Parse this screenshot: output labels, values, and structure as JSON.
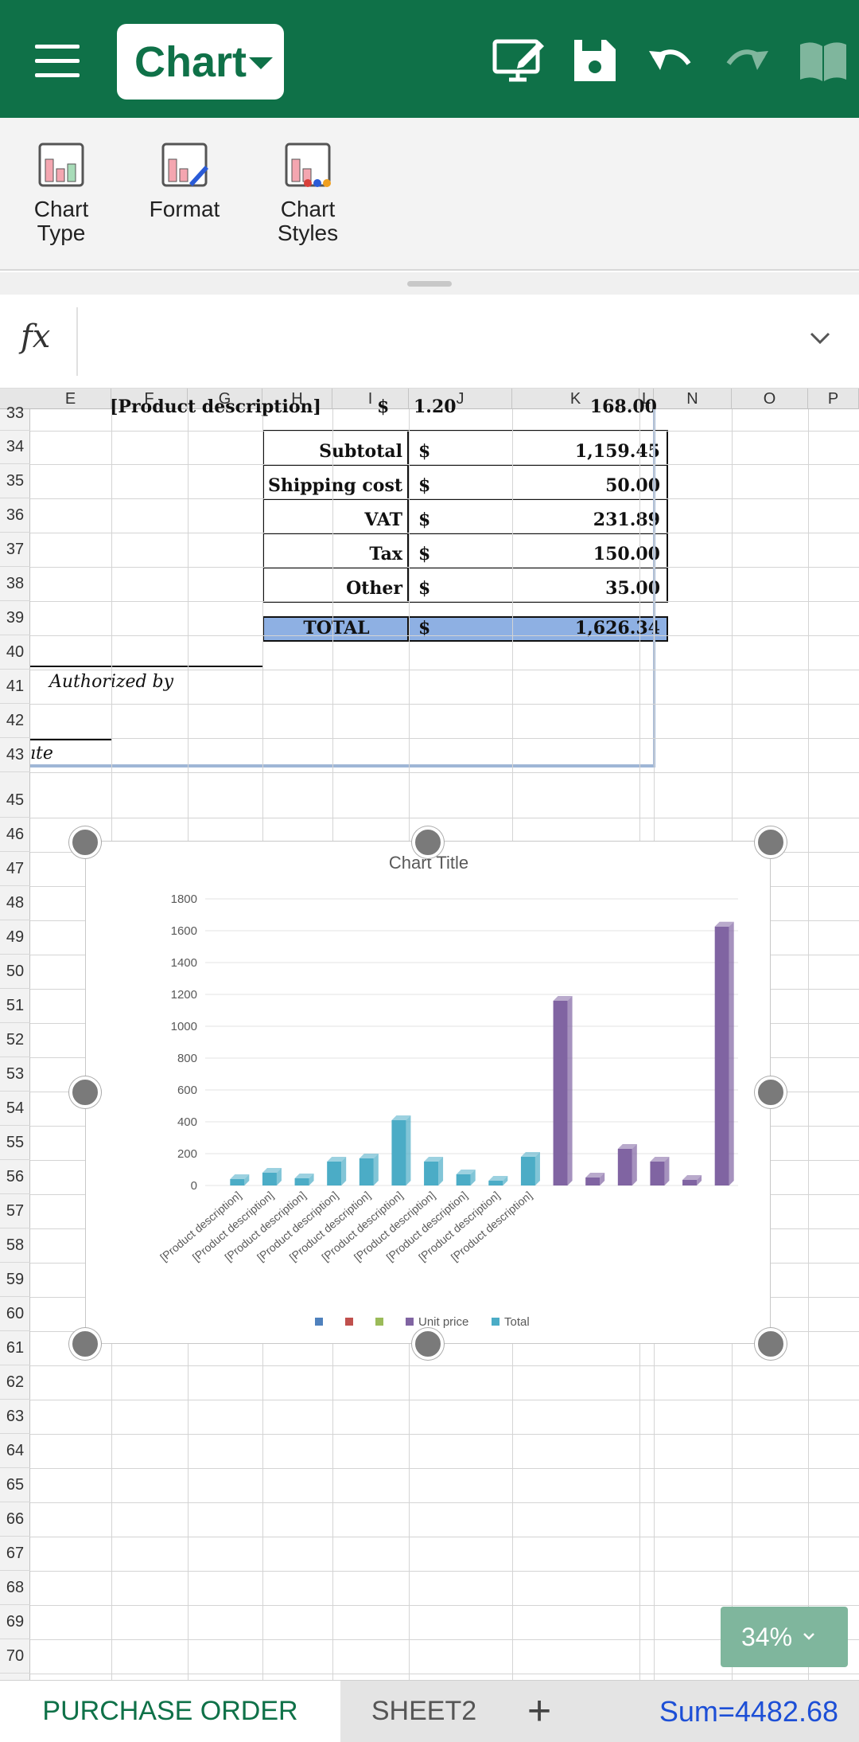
{
  "toolbar": {
    "mode_label": "Chart",
    "icons": [
      "menu-icon",
      "screen-edit-icon",
      "save-icon",
      "undo-icon",
      "redo-icon",
      "read-mode-icon"
    ]
  },
  "ribbon": {
    "items": [
      {
        "label": "Chart\nType",
        "icon": "chart-type-icon"
      },
      {
        "label": "Format",
        "icon": "format-icon"
      },
      {
        "label": "Chart\nStyles",
        "icon": "chart-styles-icon"
      }
    ]
  },
  "formula": {
    "fx_label": "fx",
    "value": ""
  },
  "columns": [
    "E",
    "F",
    "G",
    "H",
    "I",
    "J",
    "K",
    "L",
    "N",
    "O",
    "P"
  ],
  "rows": [
    "33",
    "34",
    "35",
    "36",
    "37",
    "38",
    "39",
    "40",
    "41",
    "42",
    "43",
    "45",
    "46",
    "47",
    "48",
    "49",
    "50",
    "51",
    "52",
    "53",
    "54",
    "55",
    "56",
    "57",
    "58",
    "59",
    "60",
    "61",
    "62",
    "63",
    "64",
    "65",
    "66",
    "67",
    "68",
    "69",
    "70"
  ],
  "sheet": {
    "partial_row": {
      "desc": "[Product description]",
      "amount": "168.00",
      "dollar": "$"
    },
    "summary": [
      {
        "label": "Subtotal",
        "currency": "$",
        "amount": "1,159.45"
      },
      {
        "label": "Shipping cost",
        "currency": "$",
        "amount": "50.00"
      },
      {
        "label": "VAT",
        "currency": "$",
        "amount": "231.89"
      },
      {
        "label": "Tax",
        "currency": "$",
        "amount": "150.00"
      },
      {
        "label": "Other",
        "currency": "$",
        "amount": "35.00"
      }
    ],
    "total": {
      "label": "TOTAL",
      "currency": "$",
      "amount": "1,626.34"
    },
    "authorized_by": "Authorized by",
    "date_fragment": "ıte"
  },
  "chart_data": {
    "type": "bar",
    "title": "Chart Title",
    "ylim": [
      0,
      1800
    ],
    "yticks": [
      0,
      200,
      400,
      600,
      800,
      1000,
      1200,
      1400,
      1600,
      1800
    ],
    "categories": [
      "[Product description]",
      "[Product description]",
      "[Product description]",
      "[Product description]",
      "[Product description]",
      "[Product description]",
      "[Product description]",
      "[Product description]",
      "[Product description]",
      "[Product description]",
      "",
      "",
      "",
      "",
      "",
      ""
    ],
    "series": [
      {
        "name": "Total",
        "color": "#4bacc6",
        "values": [
          40,
          80,
          45,
          150,
          170,
          410,
          150,
          70,
          30,
          180,
          null,
          null,
          null,
          null,
          null,
          null
        ]
      },
      {
        "name": "Unit price",
        "color": "#8064a2",
        "values": [
          null,
          null,
          null,
          null,
          null,
          null,
          null,
          null,
          null,
          null,
          1160,
          50,
          230,
          150,
          35,
          1626
        ]
      }
    ],
    "legend_swatches": [
      {
        "color": "#4f81bd",
        "name": ""
      },
      {
        "color": "#c0504d",
        "name": ""
      },
      {
        "color": "#9bbb59",
        "name": ""
      },
      {
        "color": "#8064a2",
        "name": "Unit price"
      },
      {
        "color": "#4bacc6",
        "name": "Total"
      }
    ],
    "legend_position": "bottom",
    "grid": true
  },
  "bottom": {
    "active_tab": "PURCHASE ORDER",
    "other_tab": "SHEET2",
    "add_label": "+",
    "sum": "Sum=4482.68",
    "zoom": "34%"
  }
}
